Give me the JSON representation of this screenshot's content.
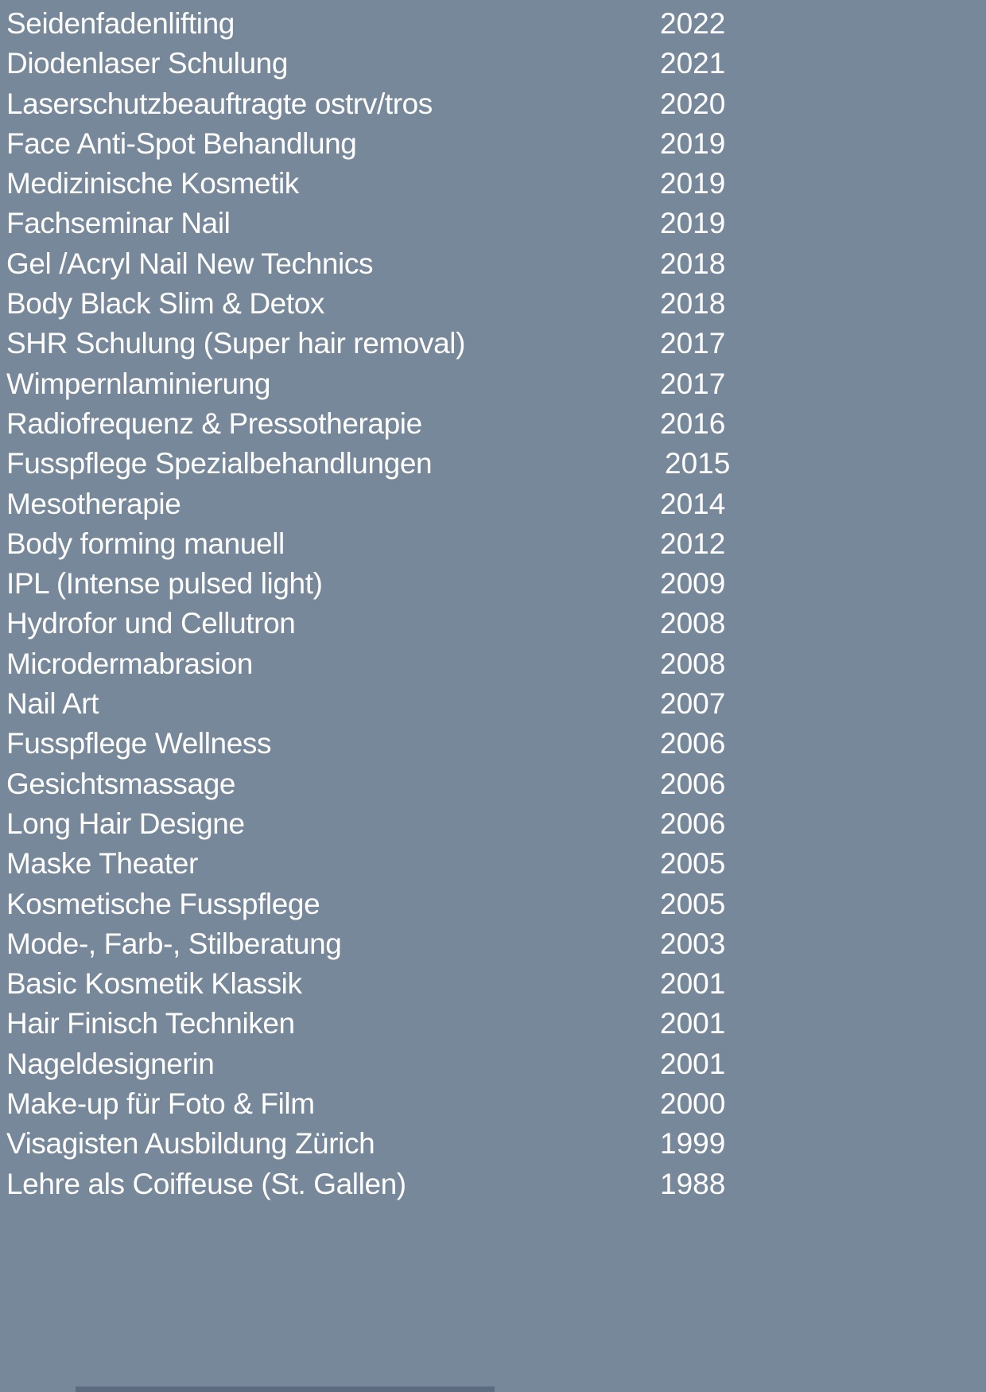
{
  "page": {
    "background_color": "#77889B",
    "text_color": "#FFFFFF",
    "bottom_bar_color": "#5C6B7F"
  },
  "qualifications": {
    "entries": [
      {
        "label": "Seidenfadenlifting",
        "year": "2022"
      },
      {
        "label": "Diodenlaser Schulung",
        "year": "2021"
      },
      {
        "label": "Laserschutzbeauftragte ostrv/tros",
        "year": "2020"
      },
      {
        "label": "Face Anti-Spot Behandlung",
        "year": "2019"
      },
      {
        "label": "Medizinische Kosmetik",
        "year": "2019"
      },
      {
        "label": "Fachseminar Nail",
        "year": "2019"
      },
      {
        "label": "Gel /Acryl Nail New Technics",
        "year": "2018"
      },
      {
        "label": "Body Black Slim & Detox",
        "year": "2018"
      },
      {
        "label": "SHR Schulung (Super hair removal)",
        "year": "2017"
      },
      {
        "label": "Wimpernlaminierung",
        "year": "2017"
      },
      {
        "label": "Radiofrequenz & Pressotherapie",
        "year": "2016"
      },
      {
        "label": "Fusspflege Spezialbehandlungen",
        "year": "2015"
      },
      {
        "label": "Mesotherapie",
        "year": "2014"
      },
      {
        "label": "Body forming manuell",
        "year": "2012"
      },
      {
        "label": "IPL (Intense pulsed light)",
        "year": "2009"
      },
      {
        "label": "Hydrofor und Cellutron",
        "year": "2008"
      },
      {
        "label": "Microdermabrasion",
        "year": "2008"
      },
      {
        "label": "Nail Art",
        "year": "2007"
      },
      {
        "label": "Fusspflege Wellness",
        "year": "2006"
      },
      {
        "label": "Gesichtsmassage",
        "year": "2006"
      },
      {
        "label": "Long Hair Designe",
        "year": "2006"
      },
      {
        "label": "Maske Theater",
        "year": "2005"
      },
      {
        "label": "Kosmetische Fusspflege",
        "year": "2005"
      },
      {
        "label": "Mode-, Farb-, Stilberatung",
        "year": "2003"
      },
      {
        "label": "Basic Kosmetik Klassik",
        "year": "2001"
      },
      {
        "label": "Hair Finisch Techniken",
        "year": "2001"
      },
      {
        "label": "Nageldesignerin",
        "year": "2001"
      },
      {
        "label": "Make-up für Foto & Film",
        "year": "2000"
      },
      {
        "label": "Visagisten Ausbildung Zürich",
        "year": "1999"
      },
      {
        "label": "Lehre als Coiffeuse  (St. Gallen)",
        "year": "1988"
      }
    ]
  }
}
